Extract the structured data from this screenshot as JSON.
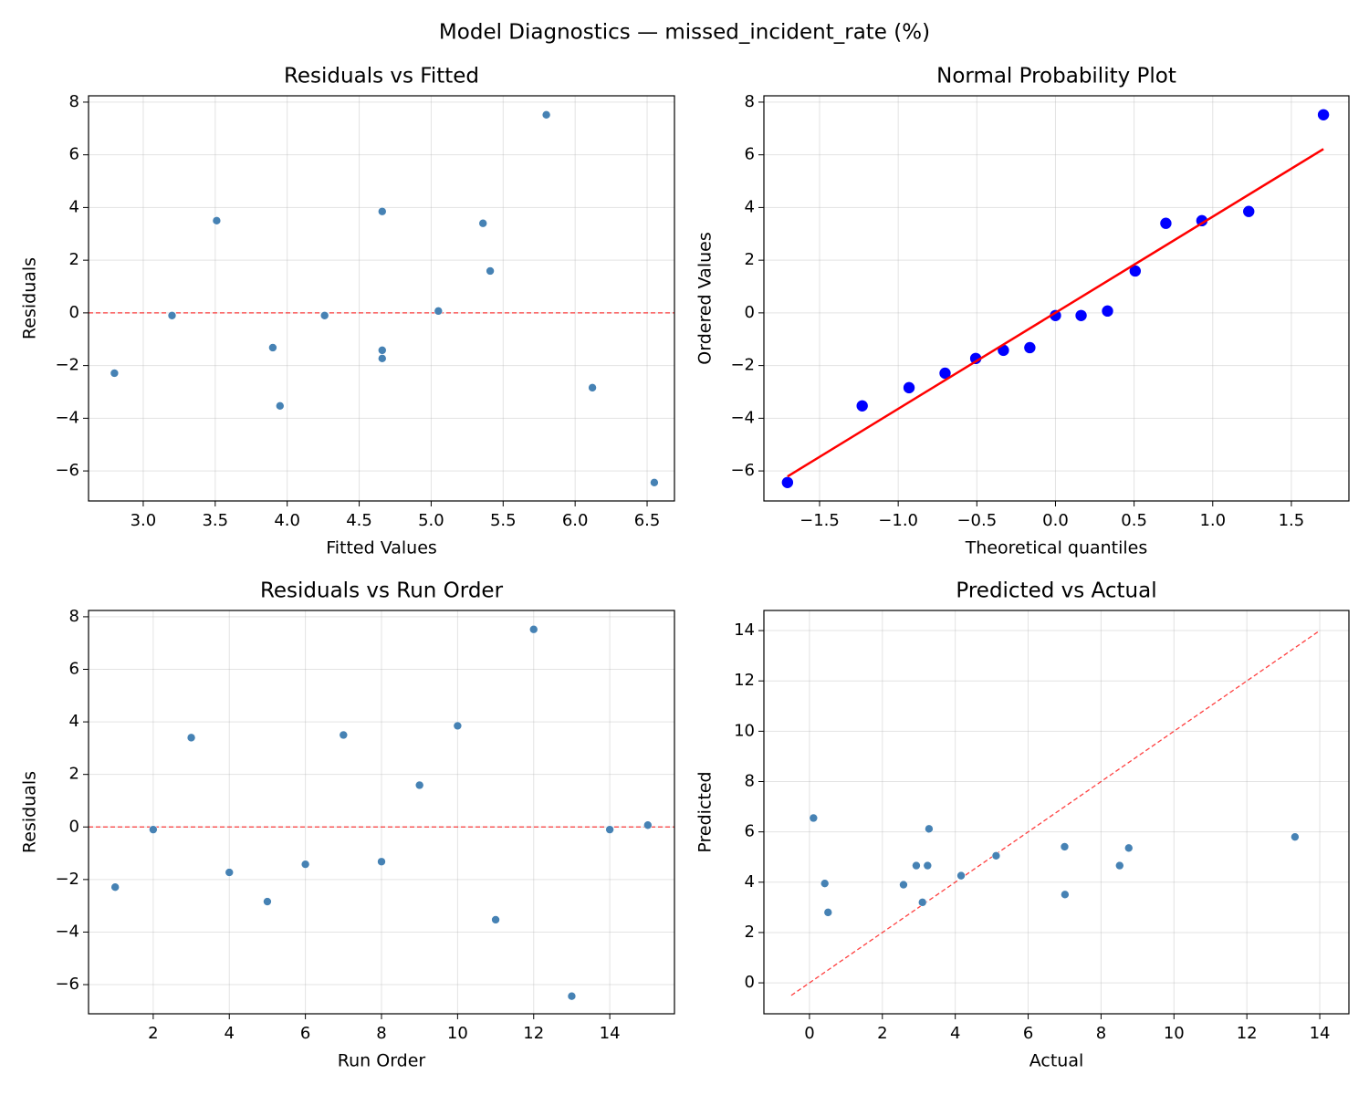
{
  "title": "Model Diagnostics — missed_incident_rate (%)",
  "chart_data": [
    {
      "type": "scatter",
      "title": "Residuals vs Fitted",
      "xlabel": "Fitted Values",
      "ylabel": "Residuals",
      "xlim": [
        2.62,
        6.69
      ],
      "ylim": [
        -7.14,
        8.24
      ],
      "grid": true,
      "xticks": [
        {
          "value": 3,
          "label": "3.0"
        },
        {
          "value": 3.5,
          "label": "3.5"
        },
        {
          "value": 4,
          "label": "4.0"
        },
        {
          "value": 4.5,
          "label": "4.5"
        },
        {
          "value": 5,
          "label": "5.0"
        },
        {
          "value": 5.5,
          "label": "5.5"
        },
        {
          "value": 6,
          "label": "6.0"
        },
        {
          "value": 6.5,
          "label": "6.5"
        }
      ],
      "yticks": [
        {
          "value": -6,
          "label": "−6"
        },
        {
          "value": -4,
          "label": "−4"
        },
        {
          "value": -2,
          "label": "−2"
        },
        0,
        2,
        4,
        6,
        8
      ],
      "series": [
        {
          "color": "#4682b4",
          "x": [
            2.8,
            3.2,
            5.36,
            4.66,
            6.12,
            4.66,
            3.51,
            3.9,
            5.41,
            4.66,
            3.95,
            5.8,
            6.55,
            4.26,
            5.05
          ],
          "values": [
            -2.29,
            -0.1,
            3.4,
            -1.73,
            -2.84,
            -1.42,
            3.5,
            -1.32,
            1.59,
            3.85,
            -3.53,
            7.52,
            -6.44,
            -0.1,
            0.07
          ]
        }
      ],
      "hline": {
        "value": 0,
        "color": "#ff0000"
      }
    },
    {
      "type": "scatter",
      "title": "Normal Probability Plot",
      "xlabel": "Theoretical quantiles",
      "ylabel": "Ordered Values",
      "xlim": [
        -1.854,
        1.866
      ],
      "ylim": [
        -7.14,
        8.24
      ],
      "grid": true,
      "xticks": [
        {
          "value": -1.5,
          "label": "−1.5"
        },
        {
          "value": -1,
          "label": "−1.0"
        },
        {
          "value": -0.5,
          "label": "−0.5"
        },
        {
          "value": 0,
          "label": "0.0"
        },
        0.5,
        {
          "value": 1,
          "label": "1.0"
        },
        1.5
      ],
      "yticks": [
        {
          "value": -6,
          "label": "−6"
        },
        {
          "value": -4,
          "label": "−4"
        },
        {
          "value": -2,
          "label": "−2"
        },
        0,
        2,
        4,
        6,
        8
      ],
      "series": [
        {
          "color": "#0000ff",
          "x": [
            -1.704,
            -1.229,
            -0.931,
            -0.702,
            -0.507,
            -0.331,
            -0.163,
            0,
            0.163,
            0.331,
            0.507,
            0.702,
            0.931,
            1.229,
            1.704
          ],
          "values": [
            -6.44,
            -3.53,
            -2.84,
            -2.29,
            -1.73,
            -1.42,
            -1.32,
            -0.1,
            -0.1,
            0.07,
            1.59,
            3.4,
            3.5,
            3.85,
            7.52
          ]
        }
      ],
      "fit_line": {
        "color": "#ff0000",
        "x": [
          -1.704,
          1.704
        ],
        "values": [
          -6.21,
          6.22
        ]
      }
    },
    {
      "type": "scatter",
      "title": "Residuals vs Run Order",
      "xlabel": "Run Order",
      "ylabel": "Residuals",
      "xlim": [
        0.3,
        15.7
      ],
      "ylim": [
        -7.11,
        8.24
      ],
      "grid": true,
      "xticks": [
        2,
        4,
        6,
        8,
        10,
        12,
        14
      ],
      "yticks": [
        {
          "value": -6,
          "label": "−6"
        },
        {
          "value": -4,
          "label": "−4"
        },
        {
          "value": -2,
          "label": "−2"
        },
        0,
        2,
        4,
        6,
        8
      ],
      "series": [
        {
          "color": "#4682b4",
          "x": [
            1,
            2,
            3,
            4,
            5,
            6,
            7,
            8,
            9,
            10,
            11,
            12,
            13,
            14,
            15
          ],
          "values": [
            -2.29,
            -0.1,
            3.4,
            -1.73,
            -2.84,
            -1.42,
            3.5,
            -1.32,
            1.59,
            3.85,
            -3.53,
            7.52,
            -6.44,
            -0.1,
            0.07
          ]
        }
      ],
      "hline": {
        "value": 0,
        "color": "#ff0000"
      }
    },
    {
      "type": "scatter",
      "title": "Predicted vs Actual",
      "xlabel": "Actual",
      "ylabel": "Predicted",
      "xlim": [
        -1.25,
        14.8
      ],
      "ylim": [
        -1.23,
        14.8
      ],
      "grid": true,
      "xticks": [
        0,
        2,
        4,
        6,
        8,
        10,
        12,
        14
      ],
      "yticks": [
        0,
        2,
        4,
        6,
        8,
        10,
        12,
        14
      ],
      "series": [
        {
          "color": "#4682b4",
          "x": [
            0.51,
            3.1,
            8.76,
            2.93,
            3.28,
            3.24,
            7.01,
            2.58,
            7.0,
            8.51,
            0.42,
            13.32,
            0.11,
            4.16,
            5.12
          ],
          "values": [
            2.8,
            3.2,
            5.36,
            4.66,
            6.12,
            4.66,
            3.51,
            3.9,
            5.41,
            4.66,
            3.95,
            5.8,
            6.55,
            4.26,
            5.05
          ]
        }
      ],
      "ref_line": {
        "color": "#ff0000",
        "x": [
          -0.5,
          14
        ],
        "values": [
          -0.5,
          14
        ]
      }
    }
  ]
}
